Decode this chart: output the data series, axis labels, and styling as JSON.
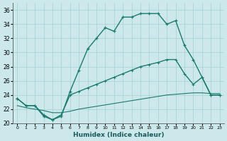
{
  "xlabel": "Humidex (Indice chaleur)",
  "bg_color": "#cce8ea",
  "grid_color": "#a8d0d2",
  "line_color": "#1a7a6e",
  "xlim": [
    -0.5,
    23.5
  ],
  "ylim": [
    20,
    37
  ],
  "ytick_vals": [
    20,
    22,
    24,
    26,
    28,
    30,
    32,
    34,
    36
  ],
  "line1_x": [
    0,
    1,
    2,
    3,
    4,
    5,
    6,
    7,
    8,
    9,
    10,
    11,
    12,
    13,
    14,
    15,
    16,
    17,
    18,
    19,
    20,
    21,
    22,
    23
  ],
  "line1_y": [
    23.5,
    22.5,
    22.5,
    21.0,
    20.5,
    21.0,
    24.5,
    27.5,
    30.5,
    32.0,
    33.5,
    33.0,
    35.0,
    35.0,
    35.5,
    35.5,
    35.5,
    34.0,
    34.5,
    31.0,
    29.0,
    26.5,
    24.0,
    24.0
  ],
  "line2_x": [
    0,
    1,
    2,
    3,
    4,
    5,
    6,
    7,
    8,
    9,
    10,
    11,
    12,
    13,
    14,
    15,
    16,
    17,
    18,
    19,
    20,
    21,
    22,
    23
  ],
  "line2_y": [
    23.5,
    22.5,
    22.5,
    21.2,
    20.5,
    21.2,
    24.0,
    24.5,
    25.0,
    25.5,
    26.0,
    26.5,
    27.0,
    27.5,
    28.0,
    28.3,
    28.6,
    29.0,
    29.0,
    27.0,
    25.5,
    26.5,
    24.0,
    24.0
  ],
  "line3_x": [
    0,
    1,
    2,
    3,
    4,
    5,
    6,
    7,
    8,
    9,
    10,
    11,
    12,
    13,
    14,
    15,
    16,
    17,
    18,
    19,
    20,
    21,
    22,
    23
  ],
  "line3_y": [
    22.5,
    22.2,
    22.0,
    21.8,
    21.5,
    21.5,
    21.7,
    22.0,
    22.2,
    22.4,
    22.6,
    22.8,
    23.0,
    23.2,
    23.4,
    23.6,
    23.8,
    24.0,
    24.1,
    24.2,
    24.3,
    24.3,
    24.2,
    24.2
  ]
}
